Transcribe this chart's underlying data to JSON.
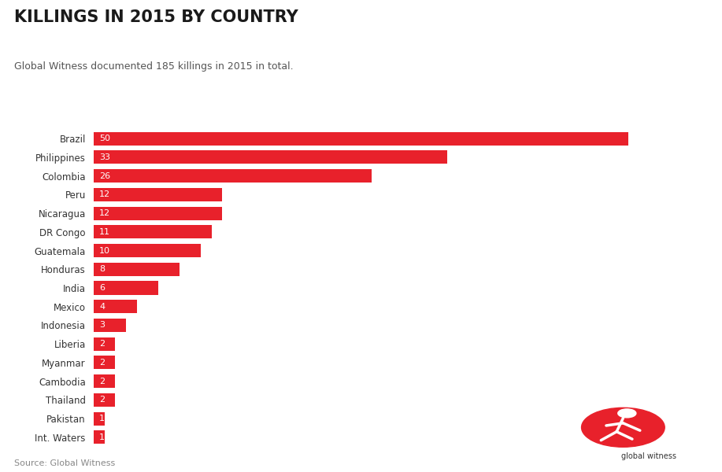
{
  "title": "KILLINGS IN 2015 BY COUNTRY",
  "subtitle": "Global Witness documented 185 killings in 2015 in total.",
  "source": "Source: Global Witness",
  "bar_color": "#e8212b",
  "background_color": "#ffffff",
  "categories": [
    "Brazil",
    "Philippines",
    "Colombia",
    "Peru",
    "Nicaragua",
    "DR Congo",
    "Guatemala",
    "Honduras",
    "India",
    "Mexico",
    "Indonesia",
    "Liberia",
    "Myanmar",
    "Cambodia",
    "Thailand",
    "Pakistan",
    "Int. Waters"
  ],
  "values": [
    50,
    33,
    26,
    12,
    12,
    11,
    10,
    8,
    6,
    4,
    3,
    2,
    2,
    2,
    2,
    1,
    1
  ],
  "title_fontsize": 15,
  "subtitle_fontsize": 9,
  "label_fontsize": 8.5,
  "value_fontsize": 8,
  "source_fontsize": 8,
  "xlim": [
    0,
    54
  ]
}
